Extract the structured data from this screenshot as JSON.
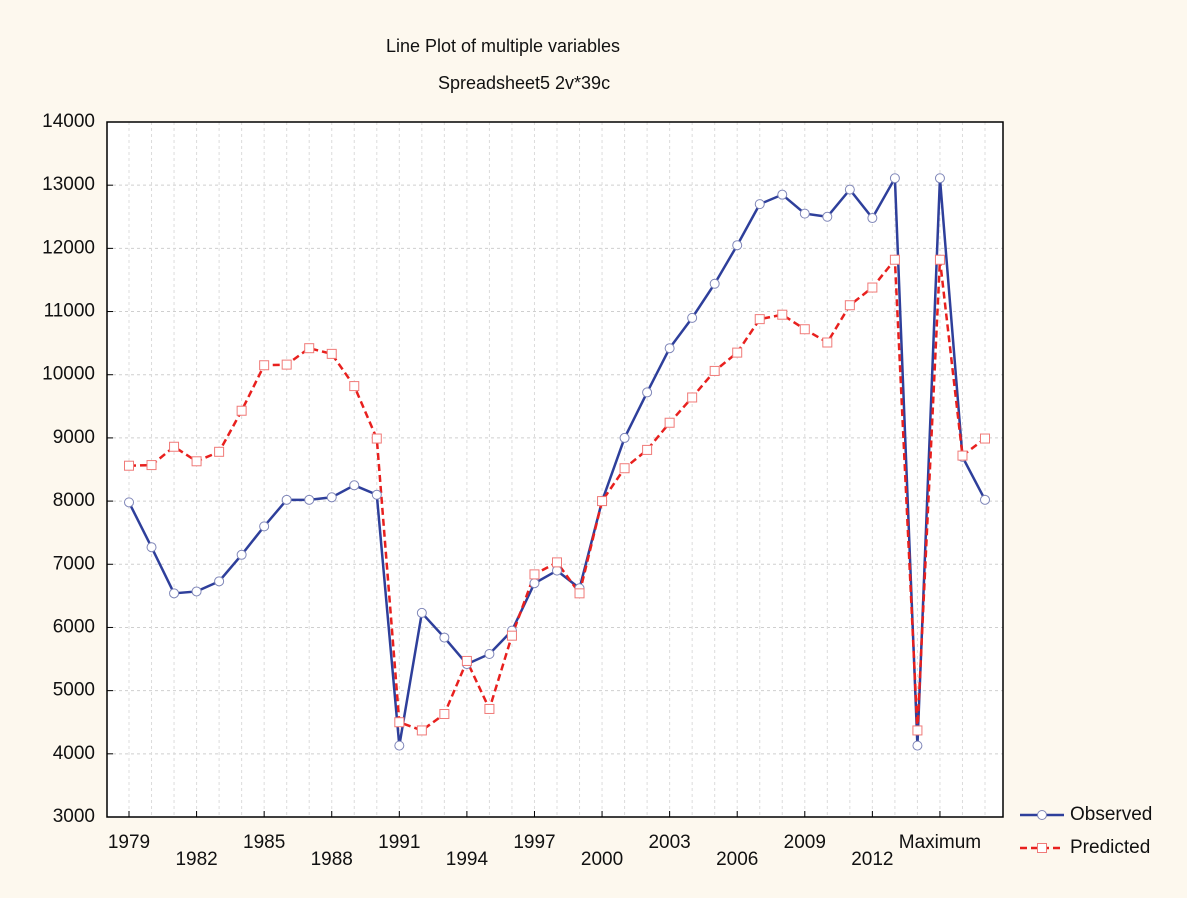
{
  "chart_data": {
    "type": "line",
    "title": "Line Plot of multiple variables",
    "subtitle": "Spreadsheet5 2v*39c",
    "categories": [
      "1979",
      null,
      null,
      "1982",
      null,
      null,
      "1985",
      null,
      null,
      "1988",
      null,
      null,
      "1991",
      null,
      null,
      "1994",
      null,
      null,
      "1997",
      null,
      null,
      "2000",
      null,
      null,
      "2003",
      null,
      null,
      "2006",
      null,
      null,
      "2009",
      null,
      null,
      "2012",
      null,
      null,
      "Maximum",
      null,
      null
    ],
    "series": [
      {
        "name": "Observed",
        "color": "#2e3f9b",
        "marker": "circle",
        "dash": "solid",
        "values": [
          7980,
          7270,
          6540,
          6570,
          6730,
          7150,
          7600,
          8020,
          8020,
          8060,
          8250,
          8100,
          4130,
          6230,
          5840,
          5420,
          5580,
          5950,
          6700,
          6900,
          6620,
          8000,
          9000,
          9720,
          10420,
          10900,
          11440,
          12050,
          12700,
          12850,
          12550,
          12500,
          12930,
          12480,
          13110,
          4130,
          13110,
          8700,
          8020
        ]
      },
      {
        "name": "Predicted",
        "color": "#e8201e",
        "marker": "square",
        "dash": "dashed",
        "values": [
          8560,
          8570,
          8860,
          8630,
          8780,
          9430,
          10150,
          10160,
          10420,
          10330,
          9820,
          8990,
          4500,
          4370,
          4630,
          5470,
          4710,
          5870,
          6840,
          7030,
          6540,
          8000,
          8520,
          8810,
          9240,
          9640,
          10060,
          10350,
          10880,
          10950,
          10720,
          10510,
          11100,
          11380,
          11820,
          4370,
          11820,
          8720,
          8990
        ]
      }
    ],
    "ylim": [
      3000,
      14000
    ],
    "yticks": [
      3000,
      4000,
      5000,
      6000,
      7000,
      8000,
      9000,
      10000,
      11000,
      12000,
      13000,
      14000
    ],
    "grid": true,
    "legend": "bottom-right"
  }
}
